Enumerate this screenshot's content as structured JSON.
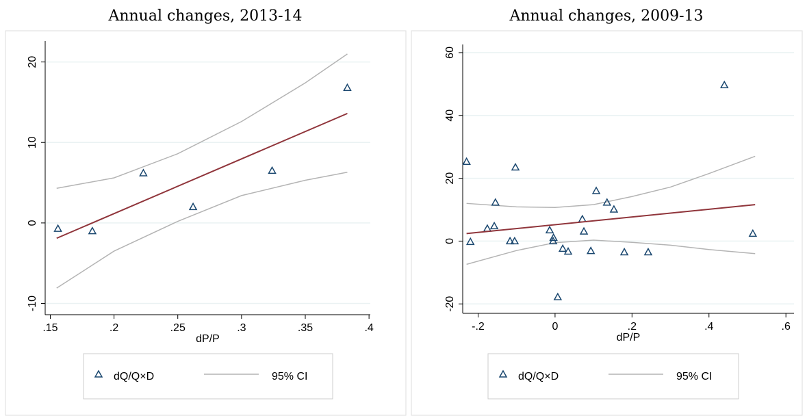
{
  "chart_data": [
    {
      "type": "scatter",
      "title": "Annual changes, 2013-14",
      "xlabel": "dP/P",
      "xlim": [
        0.146,
        0.401
      ],
      "ylim": [
        -11.4,
        22.6
      ],
      "xticks": [
        {
          "value": 0.15,
          "label": ".15"
        },
        {
          "value": 0.2,
          "label": ".2"
        },
        {
          "value": 0.25,
          "label": ".25"
        },
        {
          "value": 0.3,
          "label": ".3"
        },
        {
          "value": 0.35,
          "label": ".35"
        },
        {
          "value": 0.4,
          "label": ".4"
        }
      ],
      "yticks": [
        -10,
        0,
        10,
        20
      ],
      "grid": true,
      "series": [
        {
          "name": "dQ/Q×D",
          "color": "#1a476f",
          "x": [
            0.156,
            0.183,
            0.223,
            0.262,
            0.324,
            0.383
          ],
          "values": [
            -0.7,
            -1.0,
            6.2,
            2.0,
            6.5,
            16.8
          ]
        },
        {
          "color": "#90353b",
          "x": [
            0.155,
            0.383
          ],
          "values": [
            -1.9,
            13.6
          ]
        }
      ],
      "ci": {
        "name": "95% CI",
        "color": "#b4b4b4",
        "x": [
          0.155,
          0.2,
          0.25,
          0.3,
          0.35,
          0.383
        ],
        "upper": [
          4.3,
          5.6,
          8.6,
          12.6,
          17.4,
          21.0
        ],
        "lower": [
          -8.1,
          -3.5,
          0.2,
          3.4,
          5.3,
          6.3
        ]
      }
    },
    {
      "type": "scatter",
      "title": "Annual changes, 2009-13",
      "xlabel": "dP/P",
      "xlim": [
        -0.24,
        0.621
      ],
      "ylim": [
        -23,
        62.6
      ],
      "xticks": [
        {
          "value": -0.2,
          "label": "-.2"
        },
        0,
        {
          "value": 0.2,
          "label": ".2"
        },
        {
          "value": 0.4,
          "label": ".4"
        },
        {
          "value": 0.6,
          "label": ".6"
        }
      ],
      "yticks": [
        -20,
        0,
        20,
        40,
        60
      ],
      "grid": true,
      "series": [
        {
          "name": "dQ/Q×D",
          "color": "#1a476f",
          "x": [
            -0.23,
            -0.22,
            -0.155,
            -0.176,
            -0.158,
            -0.117,
            -0.105,
            -0.103,
            -0.014,
            -0.004,
            -0.005,
            0.02,
            0.034,
            0.071,
            0.075,
            0.093,
            0.107,
            0.135,
            0.153,
            0.18,
            0.242,
            0.44,
            0.514,
            0.007
          ],
          "values": [
            25.3,
            -0.2,
            12.3,
            4.0,
            4.8,
            0,
            0,
            23.5,
            3.5,
            1.1,
            0,
            -2.4,
            -3.3,
            7.0,
            3.1,
            -3.1,
            16.0,
            12.3,
            10.1,
            -3.5,
            -3.5,
            49.7,
            2.4,
            -17.8
          ]
        },
        {
          "color": "#90353b",
          "x": [
            -0.23,
            0.52
          ],
          "values": [
            2.4,
            11.6
          ]
        }
      ],
      "ci": {
        "name": "95% CI",
        "color": "#b4b4b4",
        "x": [
          -0.23,
          -0.1,
          0,
          0.1,
          0.2,
          0.3,
          0.4,
          0.52
        ],
        "upper": [
          12,
          10.9,
          10.7,
          11.6,
          14.2,
          17.2,
          21.5,
          27
        ],
        "lower": [
          -7.4,
          -3,
          -0.5,
          0.3,
          -0.4,
          -1.3,
          -2.7,
          -4
        ]
      }
    }
  ]
}
